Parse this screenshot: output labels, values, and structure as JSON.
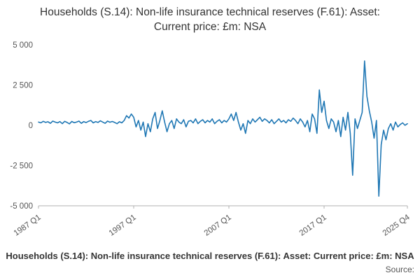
{
  "title": {
    "text": "Households (S.14): Non-life insurance technical reserves (F.61): Asset: Current price: £m: NSA"
  },
  "footer": {
    "caption": "Households (S.14): Non-life insurance technical reserves (F.61): Asset: Current price: £m: NSA",
    "source_label": "Source:"
  },
  "colors": {
    "line": "#1f77b4",
    "axis": "#b0b0b0",
    "tick_text": "#555555"
  },
  "chart_data": {
    "type": "line",
    "title": "Households (S.14): Non-life insurance technical reserves (F.61): Asset: Current price: £m: NSA",
    "xlabel": "",
    "ylabel": "",
    "x_start": "1987 Q1",
    "x_end": "2025 Q4",
    "frequency": "quarterly",
    "x_tick_labels": [
      "1987 Q1",
      "1997 Q1",
      "2007 Q1",
      "2017 Q1",
      "2025 Q4"
    ],
    "x_tick_indices": [
      0,
      40,
      80,
      120,
      155
    ],
    "y_tick_labels": [
      "5 000",
      "2 500",
      "0",
      "-2 500",
      "-5 000"
    ],
    "y_tick_values": [
      5000,
      2500,
      0,
      -2500,
      -5000
    ],
    "ylim": [
      -5000,
      5000
    ],
    "grid": false,
    "legend": "none",
    "values": [
      200,
      150,
      250,
      180,
      220,
      120,
      260,
      200,
      150,
      230,
      100,
      250,
      180,
      90,
      240,
      160,
      200,
      260,
      120,
      230,
      170,
      250,
      300,
      150,
      230,
      180,
      280,
      200,
      120,
      260,
      190,
      240,
      180,
      100,
      220,
      150,
      300,
      600,
      450,
      700,
      500,
      -100,
      300,
      -300,
      200,
      -700,
      100,
      -400,
      400,
      800,
      -200,
      300,
      900,
      200,
      -400,
      100,
      300,
      -200,
      400,
      200,
      100,
      350,
      -100,
      250,
      300,
      150,
      400,
      100,
      250,
      350,
      150,
      300,
      200,
      400,
      100,
      250,
      350,
      150,
      300,
      200,
      400,
      700,
      300,
      800,
      200,
      -300,
      100,
      -500,
      300,
      100,
      400,
      200,
      350,
      500,
      250,
      400,
      300,
      150,
      350,
      100,
      250,
      400,
      200,
      300,
      150,
      350,
      250,
      450,
      300,
      100,
      400,
      200,
      -100,
      300,
      -400,
      700,
      400,
      -500,
      2200,
      800,
      1500,
      300,
      -200,
      400,
      200,
      -400,
      300,
      -700,
      500,
      -300,
      800,
      -500,
      -3100,
      400,
      -200,
      300,
      800,
      4000,
      1800,
      900,
      200,
      -800,
      300,
      -4400,
      -1200,
      -300,
      -900,
      -200,
      100,
      -300,
      200,
      -100,
      50,
      150,
      0,
      100
    ]
  }
}
